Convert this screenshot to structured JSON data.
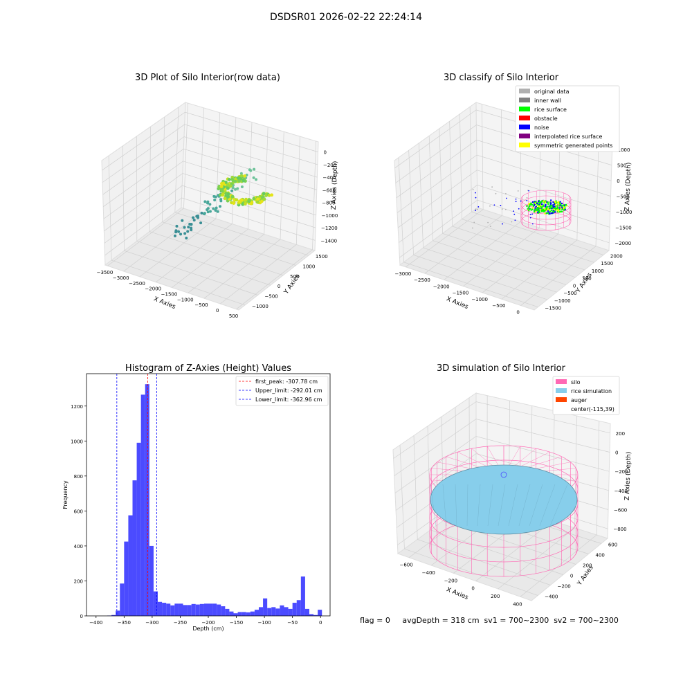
{
  "figure": {
    "suptitle": "DSDSR01 2026-02-22 22:24:14",
    "footer": "flag = 0     avgDepth = 318 cm  sv1 = 700~2300  sv2 = 700~2300"
  },
  "chart_data": [
    {
      "type": "scatter",
      "projection": "3d",
      "title": "3D Plot of Silo Interior(row data)",
      "xlabel": "X Axies",
      "ylabel": "Y Axies",
      "zlabel": "Z Axies (Depth)",
      "x_ticks": [
        "−3500",
        "−3000",
        "−2500",
        "−2000",
        "−1500",
        "−1000",
        "−500",
        "0",
        "500"
      ],
      "y_ticks": [
        "−1000",
        "−500",
        "0",
        "500",
        "1000",
        "1500"
      ],
      "z_ticks": [
        "−1400",
        "−1200",
        "−1000",
        "−800",
        "−600",
        "−400",
        "−200",
        "0"
      ],
      "colormap": "viridis",
      "grid": true
    },
    {
      "type": "scatter",
      "projection": "3d",
      "title": "3D classify of Silo Interior",
      "xlabel": "X Axies",
      "ylabel": "Y Axies",
      "zlabel": "Z Axies (Depth)",
      "x_ticks": [
        "−3000",
        "−2500",
        "−2000",
        "−1500",
        "−1000",
        "−500",
        "0"
      ],
      "y_ticks": [
        "−1500",
        "−1000",
        "−500",
        "0",
        "500",
        "1000",
        "1500",
        "2000"
      ],
      "z_ticks": [
        "−2000",
        "−1500",
        "−1000",
        "−500",
        "0",
        "500",
        "1000"
      ],
      "legend": [
        {
          "label": "original data",
          "color": "#b0b0b0"
        },
        {
          "label": "inner wall",
          "color": "#808080"
        },
        {
          "label": "rice surface",
          "color": "#00ff00"
        },
        {
          "label": "obstacle",
          "color": "#ff0000"
        },
        {
          "label": "noise",
          "color": "#0000ff"
        },
        {
          "label": "interpolated rice surface",
          "color": "#800080"
        },
        {
          "label": "symmetric generated points",
          "color": "#ffff00"
        }
      ],
      "legend_position": "top-right",
      "grid": true
    },
    {
      "type": "bar",
      "subtype": "histogram",
      "title": "Histogram of Z-Axies (Height) Values",
      "xlabel": "Depth (cm)",
      "ylabel": "Frequency",
      "xlim": [
        -417,
        17
      ],
      "ylim": [
        0,
        1385
      ],
      "x_ticks": [
        -400,
        -350,
        -300,
        -250,
        -200,
        -150,
        -100,
        -50,
        0
      ],
      "y_ticks": [
        0,
        200,
        400,
        600,
        800,
        1000,
        1200
      ],
      "bin_width": 7.5,
      "bins": [
        [
          -380,
          2
        ],
        [
          -372.5,
          5
        ],
        [
          -365,
          30
        ],
        [
          -357.5,
          185
        ],
        [
          -350,
          425
        ],
        [
          -342.5,
          575
        ],
        [
          -335,
          775
        ],
        [
          -327.5,
          990
        ],
        [
          -320,
          1265
        ],
        [
          -312.5,
          1325
        ],
        [
          -305,
          400
        ],
        [
          -297.5,
          140
        ],
        [
          -290,
          80
        ],
        [
          -282.5,
          75
        ],
        [
          -275,
          70
        ],
        [
          -267.5,
          60
        ],
        [
          -260,
          70
        ],
        [
          -252.5,
          70
        ],
        [
          -245,
          62
        ],
        [
          -237.5,
          62
        ],
        [
          -230,
          68
        ],
        [
          -222.5,
          65
        ],
        [
          -215,
          68
        ],
        [
          -207.5,
          70
        ],
        [
          -200,
          70
        ],
        [
          -192.5,
          70
        ],
        [
          -185,
          65
        ],
        [
          -177.5,
          55
        ],
        [
          -170,
          40
        ],
        [
          -162.5,
          25
        ],
        [
          -155,
          15
        ],
        [
          -147.5,
          22
        ],
        [
          -140,
          22
        ],
        [
          -132.5,
          20
        ],
        [
          -125,
          25
        ],
        [
          -117.5,
          35
        ],
        [
          -110,
          50
        ],
        [
          -102.5,
          100
        ],
        [
          -95,
          45
        ],
        [
          -87.5,
          50
        ],
        [
          -80,
          42
        ],
        [
          -72.5,
          60
        ],
        [
          -65,
          50
        ],
        [
          -57.5,
          40
        ],
        [
          -50,
          75
        ],
        [
          -42.5,
          90
        ],
        [
          -35,
          225
        ],
        [
          -27.5,
          40
        ],
        [
          -20,
          10
        ],
        [
          -12.5,
          5
        ],
        [
          -5,
          35
        ]
      ],
      "lines": [
        {
          "label": "first_peak: -307.78 cm",
          "x": -307.78,
          "color": "#ff0000"
        },
        {
          "label": "Upper_limit: -292.01 cm",
          "x": -292.01,
          "color": "#0000ff"
        },
        {
          "label": "Lower_limit: -362.96 cm",
          "x": -362.96,
          "color": "#0000ff"
        }
      ],
      "bar_color": "#4b4bff",
      "legend_position": "top-right",
      "grid": false
    },
    {
      "type": "scatter",
      "projection": "3d",
      "title": "3D simulation of Silo Interior",
      "xlabel": "X Axies",
      "ylabel": "Y Axies",
      "zlabel": "Z Axies (Depth)",
      "x_ticks": [
        "−600",
        "−400",
        "−200",
        "0",
        "200",
        "400"
      ],
      "y_ticks": [
        "−400",
        "−200",
        "0",
        "200",
        "400",
        "600"
      ],
      "z_ticks": [
        "−800",
        "−600",
        "−400",
        "−200",
        "0",
        "200"
      ],
      "legend": [
        {
          "label": "silo",
          "color": "#ff69b4"
        },
        {
          "label": "rice simulation",
          "color": "#87ceeb"
        },
        {
          "label": "auger",
          "color": "#ff4500"
        },
        {
          "label": "center(-115,39)",
          "color": ""
        }
      ],
      "legend_position": "top-right",
      "grid": true
    }
  ]
}
